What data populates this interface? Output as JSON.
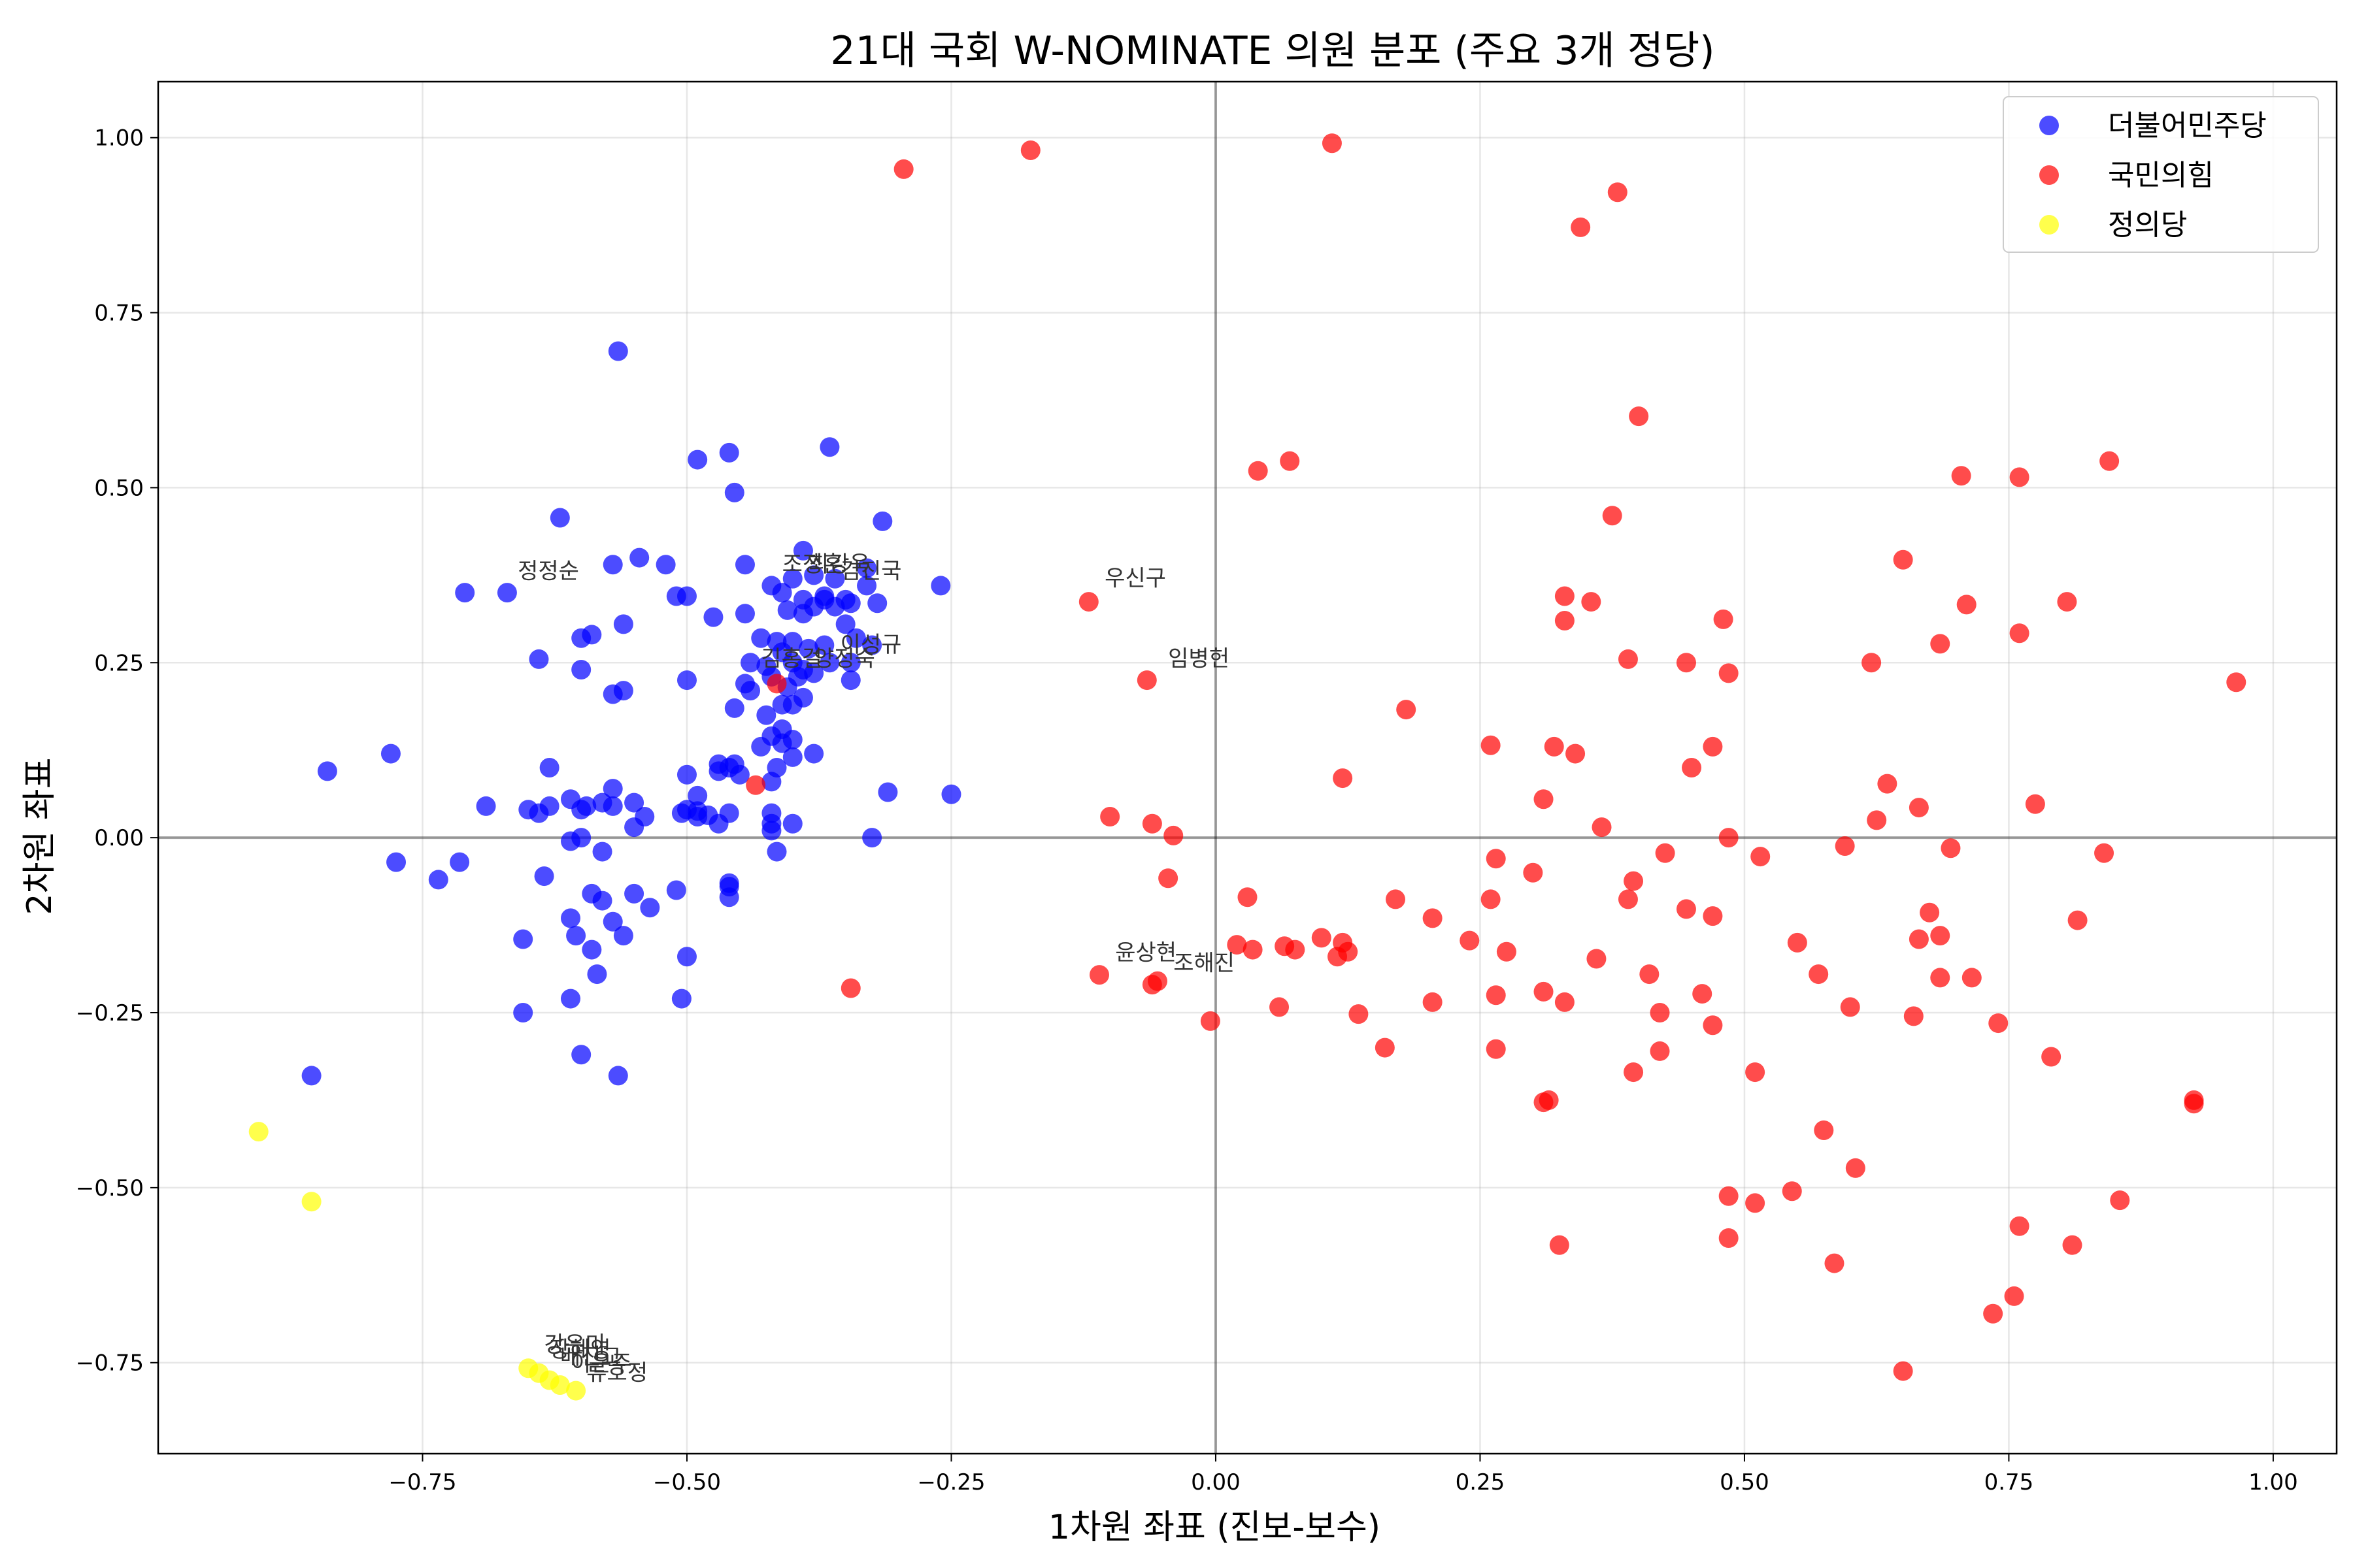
{
  "chart_data": {
    "type": "scatter",
    "title": "21대 국회 W-NOMINATE 의원 분포 (주요 3개 정당)",
    "xlabel": "1차원 좌표 (진보-보수)",
    "ylabel": "2차원 좌표",
    "xlim": [
      -1.0,
      1.06
    ],
    "ylim": [
      -0.88,
      1.08
    ],
    "xticks": [
      -0.75,
      -0.5,
      -0.25,
      0.0,
      0.25,
      0.5,
      0.75,
      1.0
    ],
    "xtick_labels": [
      "−0.75",
      "−0.50",
      "−0.25",
      "0.00",
      "0.25",
      "0.50",
      "0.75",
      "1.00"
    ],
    "yticks": [
      -0.75,
      -0.5,
      -0.25,
      0.0,
      0.25,
      0.5,
      0.75,
      1.0
    ],
    "ytick_labels": [
      "−0.75",
      "−0.50",
      "−0.25",
      "0.00",
      "0.25",
      "0.50",
      "0.75",
      "1.00"
    ],
    "grid": true,
    "legend_position": "top-right",
    "series": [
      {
        "name": "더불어민주당",
        "color": "#0000ff",
        "points": [
          [
            -0.565,
            0.695
          ],
          [
            -0.365,
            0.558
          ],
          [
            -0.46,
            0.55
          ],
          [
            -0.49,
            0.54
          ],
          [
            -0.455,
            0.493
          ],
          [
            -0.315,
            0.452
          ],
          [
            -0.62,
            0.457
          ],
          [
            -0.39,
            0.41
          ],
          [
            -0.545,
            0.4
          ],
          [
            -0.52,
            0.39
          ],
          [
            -0.445,
            0.39
          ],
          [
            -0.57,
            0.39
          ],
          [
            -0.33,
            0.385
          ],
          [
            -0.38,
            0.375
          ],
          [
            -0.36,
            0.37
          ],
          [
            -0.4,
            0.37
          ],
          [
            -0.42,
            0.36
          ],
          [
            -0.26,
            0.36
          ],
          [
            -0.33,
            0.36
          ],
          [
            -0.71,
            0.35
          ],
          [
            -0.67,
            0.35
          ],
          [
            -0.41,
            0.35
          ],
          [
            -0.37,
            0.345
          ],
          [
            -0.5,
            0.345
          ],
          [
            -0.51,
            0.345
          ],
          [
            -0.39,
            0.34
          ],
          [
            -0.35,
            0.34
          ],
          [
            -0.37,
            0.34
          ],
          [
            -0.32,
            0.335
          ],
          [
            -0.345,
            0.335
          ],
          [
            -0.38,
            0.33
          ],
          [
            -0.36,
            0.33
          ],
          [
            -0.405,
            0.325
          ],
          [
            -0.445,
            0.32
          ],
          [
            -0.39,
            0.32
          ],
          [
            -0.475,
            0.315
          ],
          [
            -0.56,
            0.305
          ],
          [
            -0.35,
            0.305
          ],
          [
            -0.59,
            0.29
          ],
          [
            -0.6,
            0.285
          ],
          [
            -0.43,
            0.285
          ],
          [
            -0.34,
            0.285
          ],
          [
            -0.415,
            0.28
          ],
          [
            -0.4,
            0.28
          ],
          [
            -0.37,
            0.275
          ],
          [
            -0.325,
            0.275
          ],
          [
            -0.385,
            0.27
          ],
          [
            -0.41,
            0.265
          ],
          [
            -0.64,
            0.255
          ],
          [
            -0.44,
            0.25
          ],
          [
            -0.4,
            0.25
          ],
          [
            -0.345,
            0.25
          ],
          [
            -0.365,
            0.25
          ],
          [
            -0.425,
            0.245
          ],
          [
            -0.6,
            0.24
          ],
          [
            -0.39,
            0.24
          ],
          [
            -0.38,
            0.235
          ],
          [
            -0.395,
            0.23
          ],
          [
            -0.42,
            0.23
          ],
          [
            -0.5,
            0.225
          ],
          [
            -0.345,
            0.225
          ],
          [
            -0.445,
            0.22
          ],
          [
            -0.405,
            0.215
          ],
          [
            -0.44,
            0.21
          ],
          [
            -0.56,
            0.21
          ],
          [
            -0.57,
            0.205
          ],
          [
            -0.39,
            0.2
          ],
          [
            -0.41,
            0.19
          ],
          [
            -0.4,
            0.19
          ],
          [
            -0.455,
            0.185
          ],
          [
            -0.425,
            0.175
          ],
          [
            -0.41,
            0.155
          ],
          [
            -0.42,
            0.145
          ],
          [
            -0.4,
            0.14
          ],
          [
            -0.41,
            0.135
          ],
          [
            -0.43,
            0.13
          ],
          [
            -0.38,
            0.12
          ],
          [
            -0.4,
            0.115
          ],
          [
            -0.78,
            0.12
          ],
          [
            -0.47,
            0.105
          ],
          [
            -0.455,
            0.105
          ],
          [
            -0.46,
            0.1
          ],
          [
            -0.415,
            0.1
          ],
          [
            -0.47,
            0.095
          ],
          [
            -0.84,
            0.095
          ],
          [
            -0.45,
            0.09
          ],
          [
            -0.5,
            0.09
          ],
          [
            -0.42,
            0.08
          ],
          [
            -0.57,
            0.07
          ],
          [
            -0.63,
            0.1
          ],
          [
            -0.31,
            0.065
          ],
          [
            -0.25,
            0.062
          ],
          [
            -0.49,
            0.06
          ],
          [
            -0.61,
            0.055
          ],
          [
            -0.55,
            0.05
          ],
          [
            -0.58,
            0.05
          ],
          [
            -0.595,
            0.045
          ],
          [
            -0.57,
            0.045
          ],
          [
            -0.69,
            0.045
          ],
          [
            -0.63,
            0.045
          ],
          [
            -0.65,
            0.04
          ],
          [
            -0.64,
            0.035
          ],
          [
            -0.5,
            0.04
          ],
          [
            -0.49,
            0.038
          ],
          [
            -0.505,
            0.035
          ],
          [
            -0.46,
            0.035
          ],
          [
            -0.42,
            0.035
          ],
          [
            -0.48,
            0.032
          ],
          [
            -0.49,
            0.03
          ],
          [
            -0.54,
            0.03
          ],
          [
            -0.6,
            0.04
          ],
          [
            -0.47,
            0.02
          ],
          [
            -0.42,
            0.02
          ],
          [
            -0.4,
            0.02
          ],
          [
            -0.55,
            0.015
          ],
          [
            -0.42,
            0.01
          ],
          [
            -0.61,
            -0.005
          ],
          [
            -0.6,
            0.0
          ],
          [
            -0.325,
            0.0
          ],
          [
            -0.58,
            -0.02
          ],
          [
            -0.415,
            -0.02
          ],
          [
            -0.775,
            -0.035
          ],
          [
            -0.715,
            -0.035
          ],
          [
            -0.735,
            -0.06
          ],
          [
            -0.635,
            -0.055
          ],
          [
            -0.46,
            -0.065
          ],
          [
            -0.46,
            -0.07
          ],
          [
            -0.51,
            -0.075
          ],
          [
            -0.55,
            -0.08
          ],
          [
            -0.59,
            -0.08
          ],
          [
            -0.58,
            -0.09
          ],
          [
            -0.46,
            -0.085
          ],
          [
            -0.535,
            -0.1
          ],
          [
            -0.61,
            -0.115
          ],
          [
            -0.57,
            -0.12
          ],
          [
            -0.605,
            -0.14
          ],
          [
            -0.56,
            -0.14
          ],
          [
            -0.655,
            -0.145
          ],
          [
            -0.59,
            -0.16
          ],
          [
            -0.5,
            -0.17
          ],
          [
            -0.585,
            -0.195
          ],
          [
            -0.61,
            -0.23
          ],
          [
            -0.505,
            -0.23
          ],
          [
            -0.655,
            -0.25
          ],
          [
            -0.6,
            -0.31
          ],
          [
            -0.565,
            -0.34
          ],
          [
            -0.855,
            -0.34
          ]
        ]
      },
      {
        "name": "국민의힘",
        "color": "#ff0000",
        "points": [
          [
            0.11,
            0.992
          ],
          [
            -0.175,
            0.982
          ],
          [
            -0.295,
            0.955
          ],
          [
            0.38,
            0.922
          ],
          [
            0.345,
            0.872
          ],
          [
            0.4,
            0.602
          ],
          [
            0.07,
            0.538
          ],
          [
            0.04,
            0.524
          ],
          [
            0.845,
            0.538
          ],
          [
            0.705,
            0.517
          ],
          [
            0.76,
            0.515
          ],
          [
            0.375,
            0.46
          ],
          [
            0.65,
            0.397
          ],
          [
            -0.12,
            0.337
          ],
          [
            0.33,
            0.345
          ],
          [
            0.355,
            0.337
          ],
          [
            0.71,
            0.333
          ],
          [
            0.805,
            0.337
          ],
          [
            0.33,
            0.31
          ],
          [
            0.48,
            0.312
          ],
          [
            0.76,
            0.292
          ],
          [
            0.685,
            0.277
          ],
          [
            0.39,
            0.255
          ],
          [
            0.445,
            0.25
          ],
          [
            0.62,
            0.25
          ],
          [
            0.485,
            0.235
          ],
          [
            -0.065,
            0.225
          ],
          [
            0.965,
            0.222
          ],
          [
            0.18,
            0.183
          ],
          [
            0.26,
            0.132
          ],
          [
            0.32,
            0.13
          ],
          [
            0.34,
            0.12
          ],
          [
            0.47,
            0.13
          ],
          [
            0.45,
            0.1
          ],
          [
            0.12,
            0.085
          ],
          [
            0.635,
            0.077
          ],
          [
            0.31,
            0.055
          ],
          [
            0.775,
            0.048
          ],
          [
            0.665,
            0.043
          ],
          [
            -0.1,
            0.03
          ],
          [
            -0.06,
            0.02
          ],
          [
            0.625,
            0.025
          ],
          [
            0.365,
            0.015
          ],
          [
            -0.04,
            0.003
          ],
          [
            0.485,
            0.0
          ],
          [
            0.595,
            -0.012
          ],
          [
            0.695,
            -0.015
          ],
          [
            0.425,
            -0.022
          ],
          [
            0.515,
            -0.027
          ],
          [
            0.84,
            -0.022
          ],
          [
            0.265,
            -0.03
          ],
          [
            0.3,
            -0.05
          ],
          [
            -0.045,
            -0.058
          ],
          [
            0.395,
            -0.062
          ],
          [
            0.03,
            -0.085
          ],
          [
            0.17,
            -0.088
          ],
          [
            0.26,
            -0.088
          ],
          [
            0.39,
            -0.088
          ],
          [
            0.445,
            -0.102
          ],
          [
            0.675,
            -0.107
          ],
          [
            0.47,
            -0.112
          ],
          [
            0.205,
            -0.115
          ],
          [
            0.815,
            -0.118
          ],
          [
            0.1,
            -0.143
          ],
          [
            0.685,
            -0.14
          ],
          [
            0.24,
            -0.147
          ],
          [
            0.12,
            -0.15
          ],
          [
            0.55,
            -0.15
          ],
          [
            0.665,
            -0.145
          ],
          [
            0.02,
            -0.153
          ],
          [
            0.065,
            -0.155
          ],
          [
            0.035,
            -0.16
          ],
          [
            0.075,
            -0.16
          ],
          [
            0.125,
            -0.163
          ],
          [
            0.275,
            -0.163
          ],
          [
            0.115,
            -0.17
          ],
          [
            0.36,
            -0.173
          ],
          [
            0.57,
            -0.195
          ],
          [
            0.41,
            -0.195
          ],
          [
            -0.11,
            -0.196
          ],
          [
            0.685,
            -0.2
          ],
          [
            0.715,
            -0.2
          ],
          [
            -0.055,
            -0.205
          ],
          [
            -0.06,
            -0.21
          ],
          [
            0.265,
            -0.225
          ],
          [
            0.31,
            -0.22
          ],
          [
            0.46,
            -0.223
          ],
          [
            0.33,
            -0.235
          ],
          [
            0.205,
            -0.235
          ],
          [
            0.6,
            -0.242
          ],
          [
            0.06,
            -0.242
          ],
          [
            0.42,
            -0.25
          ],
          [
            0.135,
            -0.252
          ],
          [
            0.66,
            -0.255
          ],
          [
            0.74,
            -0.265
          ],
          [
            -0.005,
            -0.262
          ],
          [
            0.47,
            -0.268
          ],
          [
            0.265,
            -0.302
          ],
          [
            0.16,
            -0.3
          ],
          [
            0.42,
            -0.305
          ],
          [
            0.79,
            -0.313
          ],
          [
            0.395,
            -0.335
          ],
          [
            0.51,
            -0.335
          ],
          [
            0.315,
            -0.375
          ],
          [
            0.31,
            -0.378
          ],
          [
            0.925,
            -0.375
          ],
          [
            0.925,
            -0.38
          ],
          [
            0.575,
            -0.418
          ],
          [
            0.605,
            -0.472
          ],
          [
            0.545,
            -0.505
          ],
          [
            0.485,
            -0.512
          ],
          [
            0.51,
            -0.522
          ],
          [
            0.855,
            -0.518
          ],
          [
            0.76,
            -0.555
          ],
          [
            0.325,
            -0.582
          ],
          [
            0.485,
            -0.572
          ],
          [
            0.81,
            -0.582
          ],
          [
            0.585,
            -0.608
          ],
          [
            0.755,
            -0.655
          ],
          [
            0.735,
            -0.68
          ],
          [
            0.65,
            -0.762
          ],
          [
            -0.345,
            -0.215
          ],
          [
            -0.435,
            0.075
          ],
          [
            -0.415,
            0.22
          ]
        ]
      },
      {
        "name": "정의당",
        "color": "#ffff00",
        "points": [
          [
            -0.905,
            -0.42
          ],
          [
            -0.855,
            -0.52
          ],
          [
            -0.65,
            -0.758
          ],
          [
            -0.64,
            -0.765
          ],
          [
            -0.63,
            -0.775
          ],
          [
            -0.62,
            -0.782
          ],
          [
            -0.605,
            -0.79
          ]
        ]
      }
    ],
    "annotations": [
      {
        "text": "정정순",
        "x": -0.66,
        "y": 0.37
      },
      {
        "text": "조정훈",
        "x": -0.41,
        "y": 0.38
      },
      {
        "text": "최강욱",
        "x": -0.385,
        "y": 0.38
      },
      {
        "text": "김진국",
        "x": -0.355,
        "y": 0.37
      },
      {
        "text": "이성규",
        "x": -0.355,
        "y": 0.265
      },
      {
        "text": "김홍걸",
        "x": -0.43,
        "y": 0.245
      },
      {
        "text": "양정숙",
        "x": -0.38,
        "y": 0.245
      },
      {
        "text": "우신구",
        "x": -0.105,
        "y": 0.36
      },
      {
        "text": "임병헌",
        "x": -0.045,
        "y": 0.245
      },
      {
        "text": "윤상현",
        "x": -0.095,
        "y": -0.175
      },
      {
        "text": "조해진",
        "x": -0.04,
        "y": -0.19
      },
      {
        "text": "강은미",
        "x": -0.635,
        "y": -0.735
      },
      {
        "text": "장혜영",
        "x": -0.63,
        "y": -0.742
      },
      {
        "text": "배진교",
        "x": -0.62,
        "y": -0.752
      },
      {
        "text": "이은주",
        "x": -0.61,
        "y": -0.762
      },
      {
        "text": "류호정",
        "x": -0.595,
        "y": -0.775
      }
    ]
  }
}
